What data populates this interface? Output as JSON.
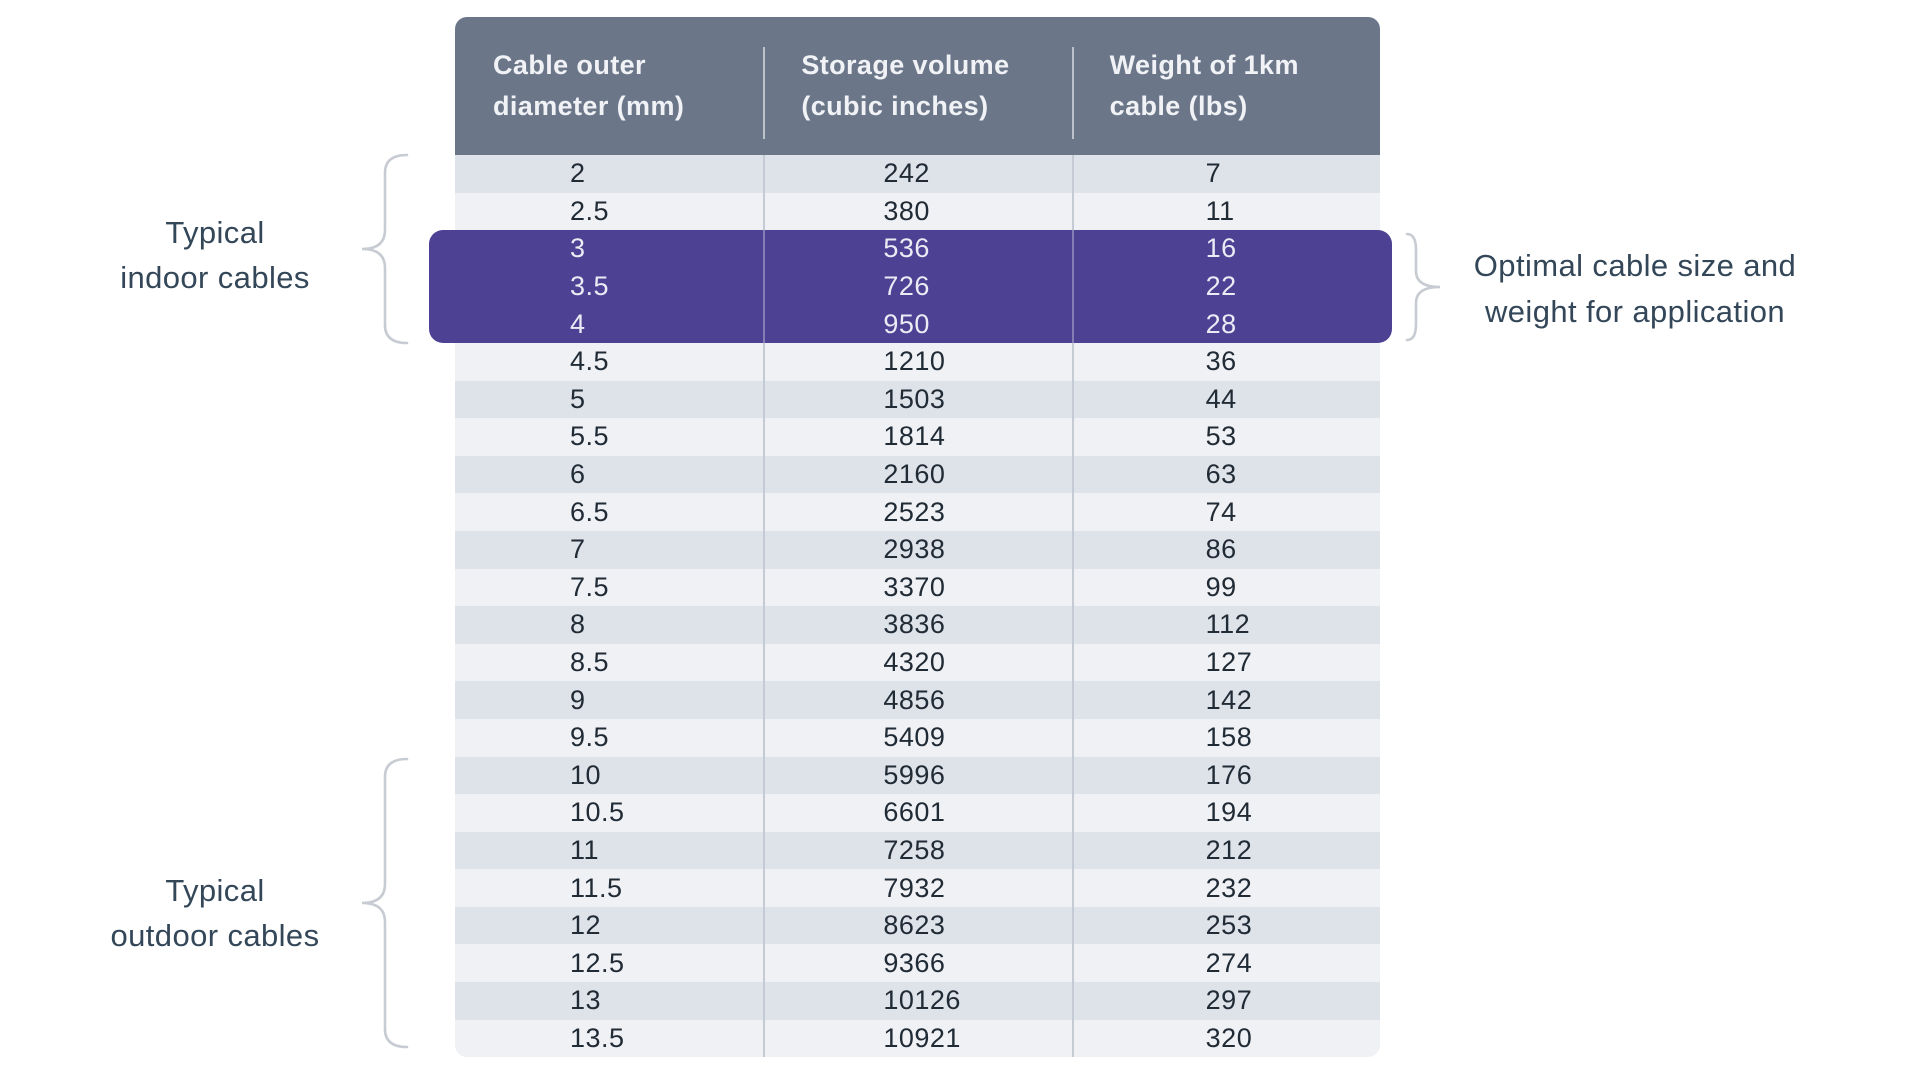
{
  "chart_data": {
    "type": "table",
    "columns": [
      {
        "line1": "Cable outer",
        "line2": "diameter (mm)"
      },
      {
        "line1": "Storage volume",
        "line2": "(cubic inches)"
      },
      {
        "line1": "Weight of 1km",
        "line2": "cable (lbs)"
      }
    ],
    "rows": [
      {
        "diameter": "2",
        "volume": "242",
        "weight": "7"
      },
      {
        "diameter": "2.5",
        "volume": "380",
        "weight": "11"
      },
      {
        "diameter": "3",
        "volume": "536",
        "weight": "16"
      },
      {
        "diameter": "3.5",
        "volume": "726",
        "weight": "22"
      },
      {
        "diameter": "4",
        "volume": "950",
        "weight": "28"
      },
      {
        "diameter": "4.5",
        "volume": "1210",
        "weight": "36"
      },
      {
        "diameter": "5",
        "volume": "1503",
        "weight": "44"
      },
      {
        "diameter": "5.5",
        "volume": "1814",
        "weight": "53"
      },
      {
        "diameter": "6",
        "volume": "2160",
        "weight": "63"
      },
      {
        "diameter": "6.5",
        "volume": "2523",
        "weight": "74"
      },
      {
        "diameter": "7",
        "volume": "2938",
        "weight": "86"
      },
      {
        "diameter": "7.5",
        "volume": "3370",
        "weight": "99"
      },
      {
        "diameter": "8",
        "volume": "3836",
        "weight": "112"
      },
      {
        "diameter": "8.5",
        "volume": "4320",
        "weight": "127"
      },
      {
        "diameter": "9",
        "volume": "4856",
        "weight": "142"
      },
      {
        "diameter": "9.5",
        "volume": "5409",
        "weight": "158"
      },
      {
        "diameter": "10",
        "volume": "5996",
        "weight": "176"
      },
      {
        "diameter": "10.5",
        "volume": "6601",
        "weight": "194"
      },
      {
        "diameter": "11",
        "volume": "7258",
        "weight": "212"
      },
      {
        "diameter": "11.5",
        "volume": "7932",
        "weight": "232"
      },
      {
        "diameter": "12",
        "volume": "8623",
        "weight": "253"
      },
      {
        "diameter": "12.5",
        "volume": "9366",
        "weight": "274"
      },
      {
        "diameter": "13",
        "volume": "10126",
        "weight": "297"
      },
      {
        "diameter": "13.5",
        "volume": "10921",
        "weight": "320"
      }
    ],
    "highlight": {
      "start_index": 2,
      "end_index": 4,
      "rows": [
        "3",
        "3.5",
        "4"
      ]
    },
    "layout_hints": {
      "striped": true,
      "equal_columns": 3
    }
  },
  "annotations": {
    "indoor": {
      "lines": [
        "Typical",
        "indoor cables"
      ]
    },
    "outdoor": {
      "lines": [
        "Typical",
        "outdoor cables"
      ]
    },
    "optimal": {
      "lines": [
        "Optimal cable size and",
        "weight for application"
      ]
    }
  },
  "colors": {
    "header_bg": "#6b7689",
    "header_text": "#f0f2f6",
    "row_dark": "#dee2e9",
    "row_light": "#eff1f5",
    "divider": "#c5cbd5",
    "highlight_bg": "#4c4193",
    "highlight_text": "#eceaf5",
    "cell_text": "#212b36",
    "annotation_text": "#334759",
    "brace": "#c7ccd3"
  }
}
